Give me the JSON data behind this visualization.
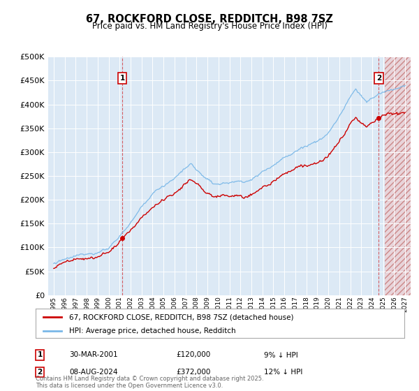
{
  "title": "67, ROCKFORD CLOSE, REDDITCH, B98 7SZ",
  "subtitle": "Price paid vs. HM Land Registry's House Price Index (HPI)",
  "background_color": "#ffffff",
  "plot_bg_color": "#dce9f5",
  "hpi_color": "#7ab8e8",
  "price_color": "#cc0000",
  "marker1_year": 2001.25,
  "marker1_price": 120000,
  "marker2_year": 2024.6,
  "marker2_price": 372000,
  "ylim": [
    0,
    500000
  ],
  "yticks": [
    0,
    50000,
    100000,
    150000,
    200000,
    250000,
    300000,
    350000,
    400000,
    450000,
    500000
  ],
  "xlim_start": 1994.5,
  "xlim_end": 2027.5,
  "xticks": [
    1995,
    1996,
    1997,
    1998,
    1999,
    2000,
    2001,
    2002,
    2003,
    2004,
    2005,
    2006,
    2007,
    2008,
    2009,
    2010,
    2011,
    2012,
    2013,
    2014,
    2015,
    2016,
    2017,
    2018,
    2019,
    2020,
    2021,
    2022,
    2023,
    2024,
    2025,
    2026,
    2027
  ],
  "legend_label_price": "67, ROCKFORD CLOSE, REDDITCH, B98 7SZ (detached house)",
  "legend_label_hpi": "HPI: Average price, detached house, Redditch",
  "note1_label": "1",
  "note1_date": "30-MAR-2001",
  "note1_price": "£120,000",
  "note1_hpi": "9% ↓ HPI",
  "note2_label": "2",
  "note2_date": "08-AUG-2024",
  "note2_price": "£372,000",
  "note2_hpi": "12% ↓ HPI",
  "footer": "Contains HM Land Registry data © Crown copyright and database right 2025.\nThis data is licensed under the Open Government Licence v3.0.",
  "hatch_future_start": 2025.17
}
